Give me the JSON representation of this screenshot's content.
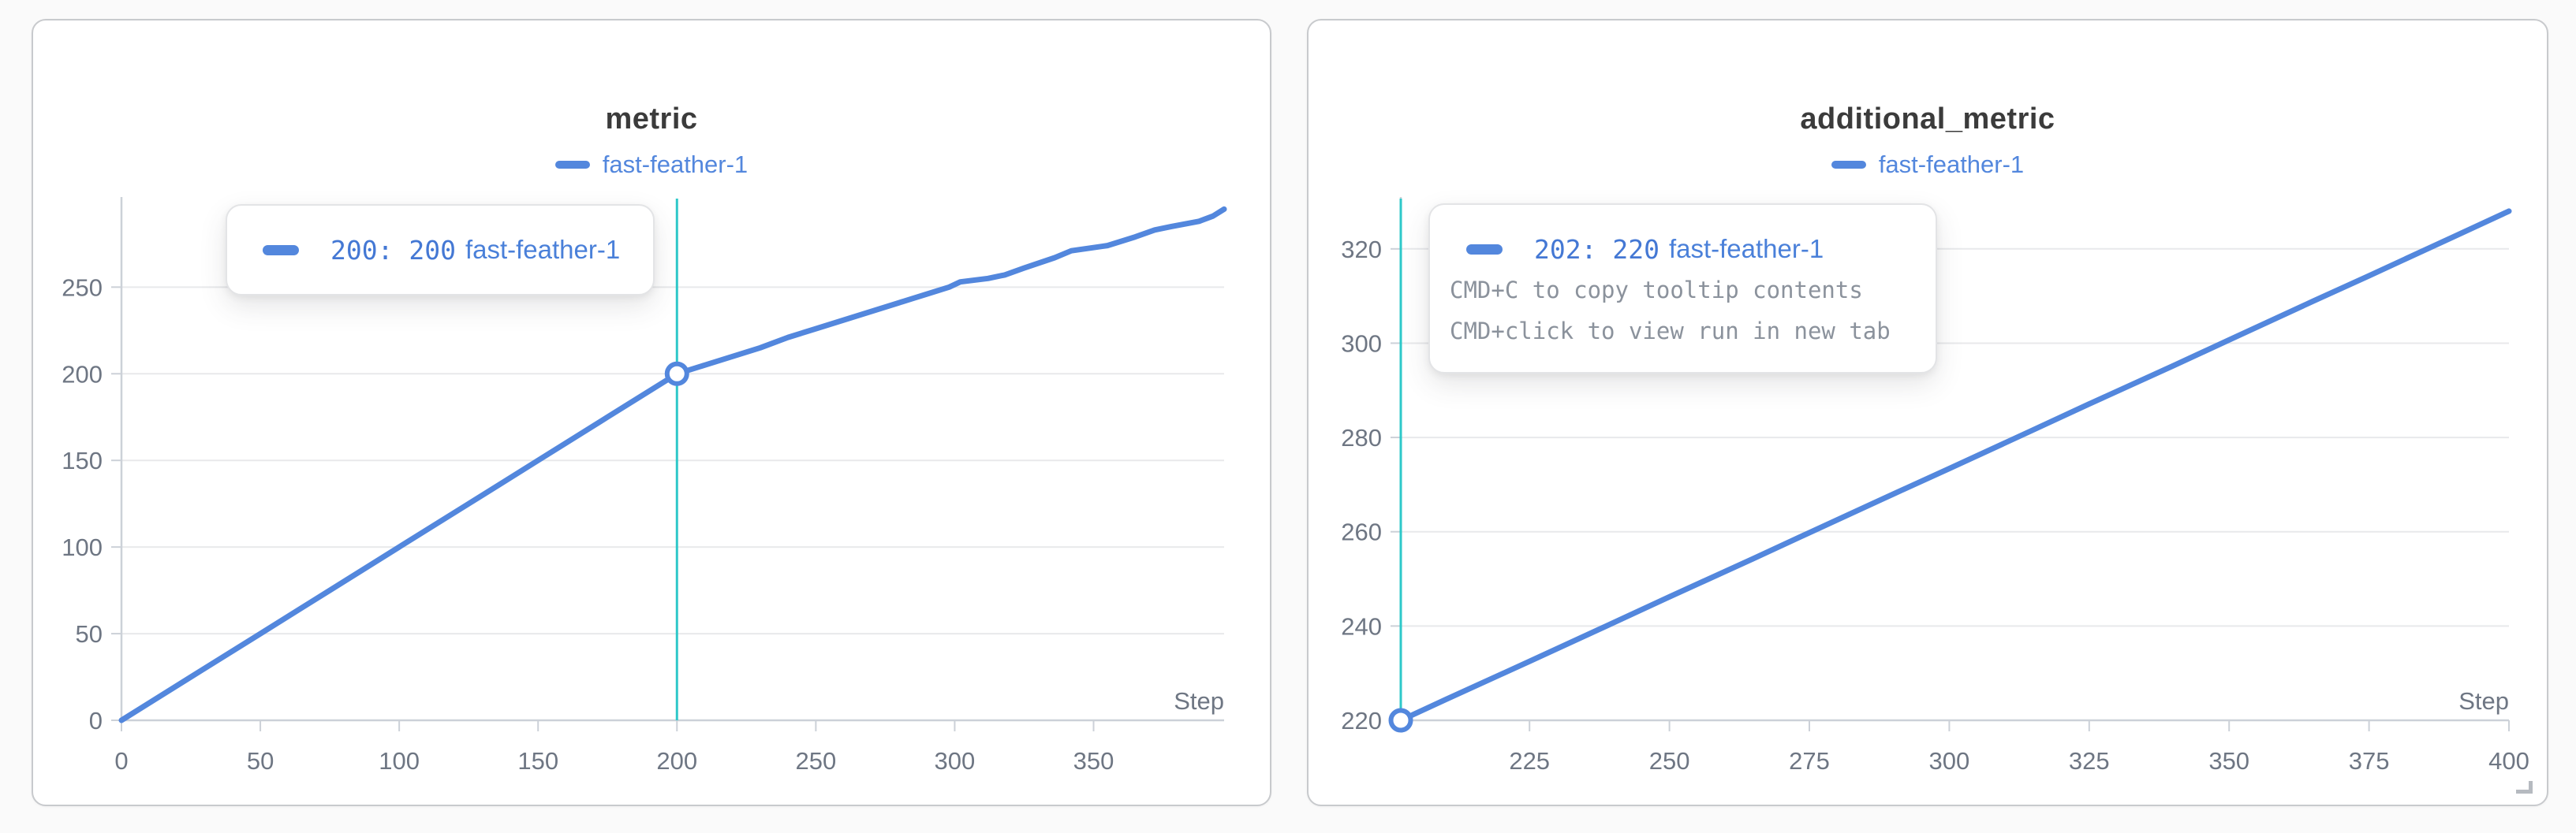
{
  "colors": {
    "run_blue": "#5387DD",
    "crosshair_teal": "#2EC8C9",
    "grid": "#E8E9EB",
    "axis": "#CCD1D8",
    "tick_text": "#6E7683",
    "title_text": "#3B3B3B",
    "helper_text": "#8B929C",
    "panel_border": "#C8CACD",
    "page_bg": "#FAFAFA"
  },
  "panels": [
    {
      "title": "metric",
      "legend": [
        {
          "label": "fast-feather-1",
          "color": "#5387DD"
        }
      ],
      "tooltip": {
        "value_text": "200: 200",
        "run_name": "fast-feather-1",
        "helper_lines": []
      }
    },
    {
      "title": "additional_metric",
      "legend": [
        {
          "label": "fast-feather-1",
          "color": "#5387DD"
        }
      ],
      "tooltip": {
        "value_text": "202: 220",
        "run_name": "fast-feather-1",
        "helper_lines": [
          "CMD+C to copy tooltip contents",
          "CMD+click to view run in new tab"
        ]
      }
    }
  ],
  "chart_data": [
    {
      "type": "line",
      "title": "metric",
      "xlabel": "Step",
      "xlim": [
        0,
        397
      ],
      "ylim": [
        0,
        302
      ],
      "xticks": [
        0,
        50,
        100,
        150,
        200,
        250,
        300,
        350
      ],
      "yticks": [
        0,
        50,
        100,
        150,
        200,
        250
      ],
      "grid": "horizontal",
      "legend_position": "top-center",
      "hover": {
        "step": 200,
        "value": 200
      },
      "series": [
        {
          "name": "fast-feather-1",
          "color": "#5387DD",
          "points": [
            [
              0,
              0
            ],
            [
              25,
              25
            ],
            [
              50,
              50
            ],
            [
              75,
              75
            ],
            [
              100,
              100
            ],
            [
              125,
              125
            ],
            [
              150,
              150
            ],
            [
              175,
              175
            ],
            [
              200,
              200
            ],
            [
              210,
              205
            ],
            [
              220,
              210
            ],
            [
              230,
              215
            ],
            [
              240,
              221
            ],
            [
              250,
              226
            ],
            [
              260,
              231
            ],
            [
              270,
              236
            ],
            [
              280,
              241
            ],
            [
              290,
              246
            ],
            [
              298,
              250
            ],
            [
              302,
              253
            ],
            [
              312,
              255
            ],
            [
              318,
              257
            ],
            [
              325,
              261
            ],
            [
              336,
              267
            ],
            [
              342,
              271
            ],
            [
              355,
              274
            ],
            [
              365,
              279
            ],
            [
              372,
              283
            ],
            [
              378,
              285
            ],
            [
              388,
              288
            ],
            [
              393,
              291
            ],
            [
              397,
              295
            ]
          ]
        }
      ]
    },
    {
      "type": "line",
      "title": "additional_metric",
      "xlabel": "Step",
      "xlim": [
        202,
        400
      ],
      "ylim": [
        220,
        331
      ],
      "xticks": [
        225,
        250,
        275,
        300,
        325,
        350,
        375,
        400
      ],
      "yticks": [
        220,
        240,
        260,
        280,
        300,
        320
      ],
      "grid": "horizontal",
      "legend_position": "top-center",
      "hover": {
        "step": 202,
        "value": 220
      },
      "series": [
        {
          "name": "fast-feather-1",
          "color": "#5387DD",
          "points": [
            [
              202,
              220
            ],
            [
              210,
              224.4
            ],
            [
              225,
              232.5
            ],
            [
              240,
              240.7
            ],
            [
              250,
              246.2
            ],
            [
              265,
              254.3
            ],
            [
              275,
              259.8
            ],
            [
              290,
              268
            ],
            [
              300,
              273.4
            ],
            [
              315,
              281.6
            ],
            [
              325,
              287.1
            ],
            [
              340,
              295.2
            ],
            [
              350,
              300.7
            ],
            [
              365,
              308.9
            ],
            [
              375,
              314.3
            ],
            [
              390,
              322.5
            ],
            [
              400,
              328
            ]
          ]
        }
      ]
    }
  ]
}
